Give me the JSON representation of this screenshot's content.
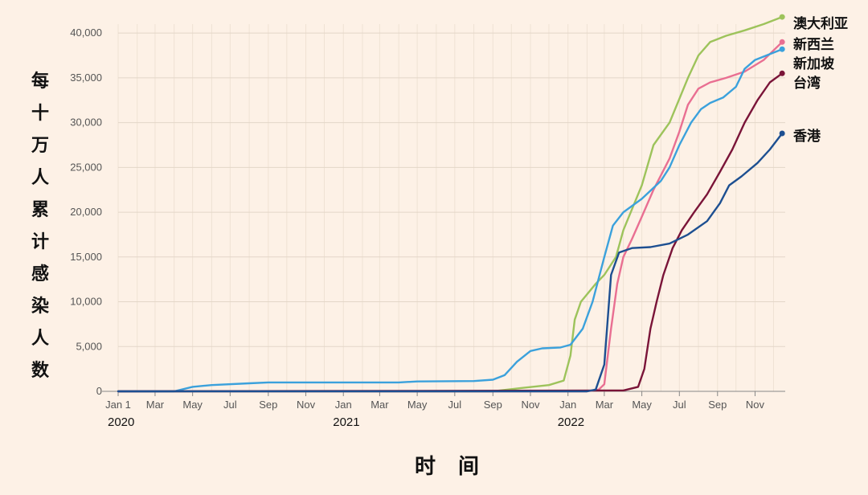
{
  "chart_data": {
    "type": "line",
    "ylabel": "每十万人累计感染人数",
    "xlabel": "时间",
    "ylim": [
      0,
      41000
    ],
    "xlim": [
      "2020-01-01",
      "2022-12-20"
    ],
    "grid": true,
    "yticks": [
      0,
      5000,
      10000,
      15000,
      20000,
      25000,
      30000,
      35000,
      40000
    ],
    "ytick_labels": [
      "0",
      "5,000",
      "10,000",
      "15,000",
      "20,000",
      "25,000",
      "30,000",
      "35,000",
      "40,000"
    ],
    "xticks": [
      {
        "date": "2020-01-01",
        "label": "Jan 1"
      },
      {
        "date": "2020-03-01",
        "label": "Mar"
      },
      {
        "date": "2020-05-01",
        "label": "May"
      },
      {
        "date": "2020-07-01",
        "label": "Jul"
      },
      {
        "date": "2020-09-01",
        "label": "Sep"
      },
      {
        "date": "2020-11-01",
        "label": "Nov"
      },
      {
        "date": "2021-01-01",
        "label": "Jan"
      },
      {
        "date": "2021-03-01",
        "label": "Mar"
      },
      {
        "date": "2021-05-01",
        "label": "May"
      },
      {
        "date": "2021-07-01",
        "label": "Jul"
      },
      {
        "date": "2021-09-01",
        "label": "Sep"
      },
      {
        "date": "2021-11-01",
        "label": "Nov"
      },
      {
        "date": "2022-01-01",
        "label": "Jan"
      },
      {
        "date": "2022-03-01",
        "label": "Mar"
      },
      {
        "date": "2022-05-01",
        "label": "May"
      },
      {
        "date": "2022-07-01",
        "label": "Jul"
      },
      {
        "date": "2022-09-01",
        "label": "Sep"
      },
      {
        "date": "2022-11-01",
        "label": "Nov"
      }
    ],
    "years": [
      {
        "date": "2020-01-01",
        "label": "2020"
      },
      {
        "date": "2021-01-01",
        "label": "2021"
      },
      {
        "date": "2022-01-01",
        "label": "2022"
      }
    ],
    "series": [
      {
        "name": "澳大利亚",
        "color": "#9dc35b",
        "points": [
          [
            "2020-01-01",
            0
          ],
          [
            "2021-09-01",
            0
          ],
          [
            "2021-10-15",
            350
          ],
          [
            "2021-12-01",
            700
          ],
          [
            "2021-12-25",
            1200
          ],
          [
            "2022-01-05",
            4000
          ],
          [
            "2022-01-12",
            8000
          ],
          [
            "2022-01-22",
            10000
          ],
          [
            "2022-02-15",
            12000
          ],
          [
            "2022-03-01",
            13000
          ],
          [
            "2022-03-20",
            15000
          ],
          [
            "2022-04-01",
            18000
          ],
          [
            "2022-05-01",
            23000
          ],
          [
            "2022-05-20",
            27500
          ],
          [
            "2022-06-15",
            30000
          ],
          [
            "2022-07-15",
            35000
          ],
          [
            "2022-08-01",
            37500
          ],
          [
            "2022-08-20",
            39000
          ],
          [
            "2022-09-15",
            39700
          ],
          [
            "2022-10-15",
            40300
          ],
          [
            "2022-11-15",
            41000
          ],
          [
            "2022-12-15",
            41800
          ]
        ]
      },
      {
        "name": "新西兰",
        "color": "#e96f92",
        "points": [
          [
            "2020-01-01",
            0
          ],
          [
            "2022-02-01",
            0
          ],
          [
            "2022-02-20",
            200
          ],
          [
            "2022-03-01",
            800
          ],
          [
            "2022-03-12",
            7000
          ],
          [
            "2022-03-22",
            12000
          ],
          [
            "2022-04-01",
            15000
          ],
          [
            "2022-04-15",
            17000
          ],
          [
            "2022-05-01",
            19500
          ],
          [
            "2022-05-20",
            22500
          ],
          [
            "2022-06-15",
            26000
          ],
          [
            "2022-07-01",
            29000
          ],
          [
            "2022-07-15",
            32000
          ],
          [
            "2022-08-01",
            33800
          ],
          [
            "2022-08-20",
            34500
          ],
          [
            "2022-09-15",
            35000
          ],
          [
            "2022-10-15",
            35700
          ],
          [
            "2022-11-15",
            37000
          ],
          [
            "2022-12-15",
            39000
          ]
        ]
      },
      {
        "name": "新加坡",
        "color": "#3ba1dc",
        "points": [
          [
            "2020-01-01",
            0
          ],
          [
            "2020-04-01",
            0
          ],
          [
            "2020-05-01",
            500
          ],
          [
            "2020-06-01",
            700
          ],
          [
            "2020-08-01",
            900
          ],
          [
            "2020-09-01",
            1000
          ],
          [
            "2021-04-01",
            1000
          ],
          [
            "2021-05-01",
            1100
          ],
          [
            "2021-08-01",
            1150
          ],
          [
            "2021-09-01",
            1300
          ],
          [
            "2021-09-20",
            1800
          ],
          [
            "2021-10-10",
            3300
          ],
          [
            "2021-11-01",
            4500
          ],
          [
            "2021-11-20",
            4800
          ],
          [
            "2021-12-20",
            4900
          ],
          [
            "2022-01-05",
            5200
          ],
          [
            "2022-01-25",
            7000
          ],
          [
            "2022-02-10",
            10000
          ],
          [
            "2022-03-01",
            15000
          ],
          [
            "2022-03-15",
            18500
          ],
          [
            "2022-04-01",
            20000
          ],
          [
            "2022-05-01",
            21500
          ],
          [
            "2022-06-01",
            23500
          ],
          [
            "2022-06-15",
            25000
          ],
          [
            "2022-07-01",
            27500
          ],
          [
            "2022-07-20",
            30000
          ],
          [
            "2022-08-05",
            31500
          ],
          [
            "2022-08-20",
            32200
          ],
          [
            "2022-09-10",
            32800
          ],
          [
            "2022-10-01",
            34000
          ],
          [
            "2022-10-15",
            36000
          ],
          [
            "2022-11-01",
            37000
          ],
          [
            "2022-12-15",
            38200
          ]
        ]
      },
      {
        "name": "台湾",
        "color": "#7a1438",
        "points": [
          [
            "2020-01-01",
            0
          ],
          [
            "2021-05-01",
            50
          ],
          [
            "2022-04-01",
            100
          ],
          [
            "2022-04-25",
            500
          ],
          [
            "2022-05-05",
            2500
          ],
          [
            "2022-05-15",
            7000
          ],
          [
            "2022-05-25",
            10000
          ],
          [
            "2022-06-05",
            13000
          ],
          [
            "2022-06-20",
            16000
          ],
          [
            "2022-07-05",
            18000
          ],
          [
            "2022-07-25",
            20000
          ],
          [
            "2022-08-15",
            22000
          ],
          [
            "2022-09-05",
            24500
          ],
          [
            "2022-09-25",
            27000
          ],
          [
            "2022-10-15",
            30000
          ],
          [
            "2022-11-05",
            32500
          ],
          [
            "2022-11-25",
            34500
          ],
          [
            "2022-12-15",
            35500
          ]
        ]
      },
      {
        "name": "香港",
        "color": "#1d4f91",
        "points": [
          [
            "2020-01-01",
            0
          ],
          [
            "2022-02-01",
            0
          ],
          [
            "2022-02-15",
            200
          ],
          [
            "2022-03-01",
            3000
          ],
          [
            "2022-03-12",
            13000
          ],
          [
            "2022-03-25",
            15500
          ],
          [
            "2022-04-15",
            16000
          ],
          [
            "2022-05-15",
            16100
          ],
          [
            "2022-06-15",
            16500
          ],
          [
            "2022-07-15",
            17500
          ],
          [
            "2022-08-15",
            19000
          ],
          [
            "2022-09-05",
            21000
          ],
          [
            "2022-09-20",
            23000
          ],
          [
            "2022-10-10",
            24000
          ],
          [
            "2022-11-05",
            25500
          ],
          [
            "2022-11-25",
            27000
          ],
          [
            "2022-12-15",
            28800
          ]
        ]
      }
    ]
  }
}
